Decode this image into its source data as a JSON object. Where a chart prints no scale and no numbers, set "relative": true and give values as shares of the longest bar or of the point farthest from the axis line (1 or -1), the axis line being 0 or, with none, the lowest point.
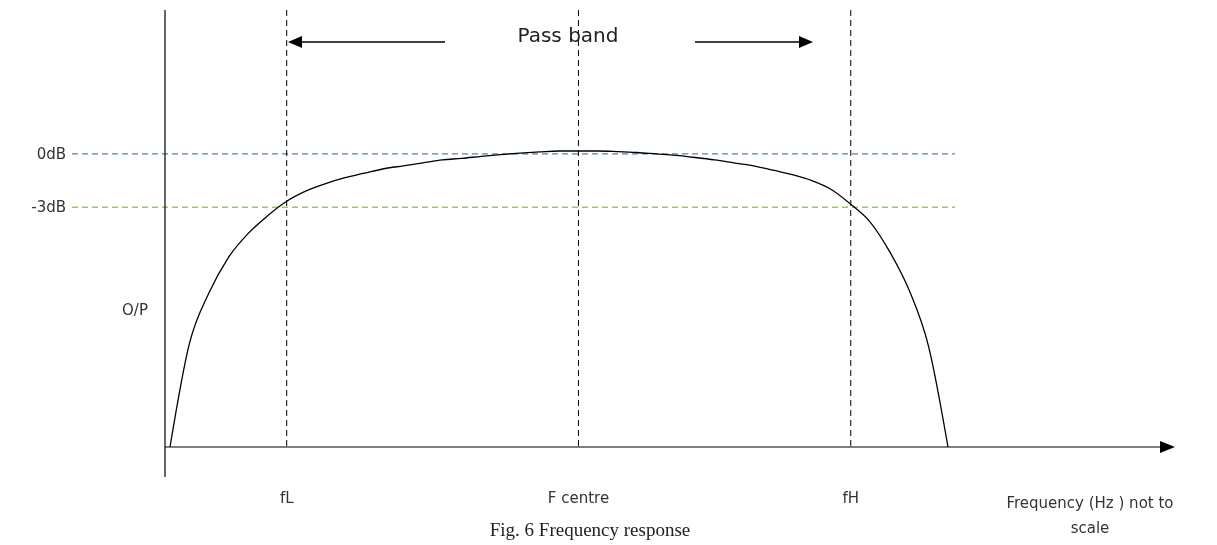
{
  "chart_data": {
    "type": "line",
    "relative": true,
    "title": "Fig. 6 Frequency response",
    "xlabel": "Frequency (Hz ) not to scale",
    "ylabel": "O/P",
    "categories": [
      null,
      null,
      null,
      null,
      null,
      null,
      "fL",
      null,
      null,
      null,
      null,
      null,
      null,
      null,
      null,
      null,
      null,
      null,
      null,
      null,
      null,
      "F centre",
      null,
      null,
      null,
      null,
      null,
      null,
      null,
      null,
      null,
      null,
      null,
      null,
      null,
      "fH",
      null,
      null,
      null,
      null,
      null
    ],
    "series": [
      {
        "color": "#000000",
        "values": [
          0,
          0.35,
          0.52,
          0.64,
          0.72,
          0.78,
          0.83,
          0.865,
          0.89,
          0.91,
          0.925,
          0.94,
          0.95,
          0.96,
          0.97,
          0.975,
          0.982,
          0.988,
          0.993,
          0.997,
          1,
          1,
          1,
          0.998,
          0.995,
          0.99,
          0.985,
          0.978,
          0.97,
          0.96,
          0.95,
          0.935,
          0.92,
          0.9,
          0.87,
          0.82,
          0.76,
          0.66,
          0.53,
          0.34,
          0
        ]
      }
    ],
    "ref_lines": [
      {
        "axis": "y",
        "value": 0.99,
        "label": "0dB",
        "color": "#4f81bd",
        "line_style": "dashed"
      },
      {
        "axis": "y",
        "value": 0.81,
        "label": "-3dB",
        "color": "#92d050",
        "line_style": "dashed"
      },
      {
        "axis": "x",
        "value": "fL",
        "color": "#000000",
        "line_style": "dashed"
      },
      {
        "axis": "x",
        "value": "F centre",
        "color": "#000000",
        "line_style": "dashed"
      },
      {
        "axis": "x",
        "value": "fH",
        "color": "#000000",
        "line_style": "dashed"
      }
    ],
    "annotations": [
      "Pass band"
    ]
  }
}
